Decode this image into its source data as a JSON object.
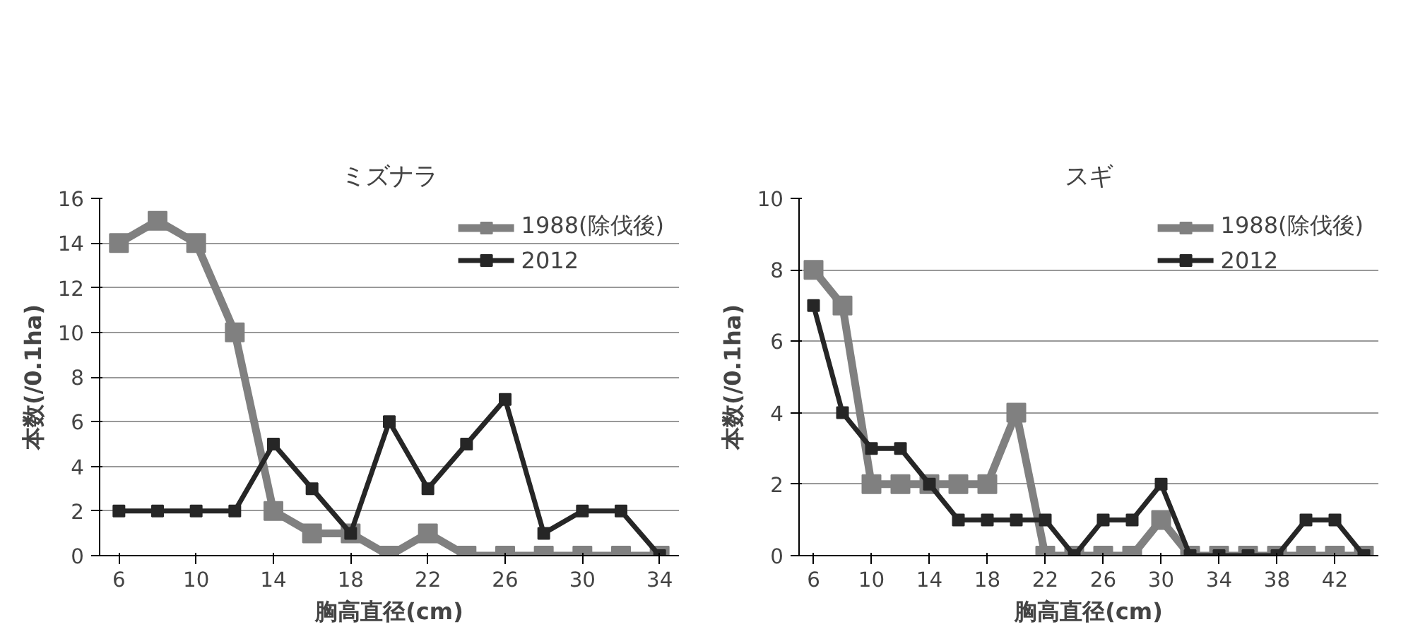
{
  "chart_data": [
    {
      "type": "line",
      "title": "ミズナラ",
      "xlabel": "胸高直径(cm)",
      "ylabel": "本数(/0.1ha)",
      "x": [
        6,
        8,
        10,
        12,
        14,
        16,
        18,
        20,
        22,
        24,
        26,
        28,
        30,
        32,
        34
      ],
      "xlim": [
        5,
        35
      ],
      "xticks": [
        6,
        10,
        14,
        18,
        22,
        26,
        30,
        34
      ],
      "ylim": [
        0,
        16
      ],
      "yticks": [
        0,
        2,
        4,
        6,
        8,
        10,
        12,
        14,
        16
      ],
      "grid": "y",
      "legend": "top right",
      "marker": "square",
      "line_style": "solid",
      "series": [
        {
          "name": "1988(除伐後)",
          "color": "#808080",
          "values": [
            14,
            15,
            14,
            10,
            2,
            1,
            1,
            0,
            1,
            0,
            0,
            0,
            0,
            0,
            0
          ]
        },
        {
          "name": "2012",
          "color": "#262626",
          "values": [
            2,
            2,
            2,
            2,
            5,
            3,
            1,
            6,
            3,
            5,
            7,
            1,
            2,
            2,
            0
          ]
        }
      ]
    },
    {
      "type": "line",
      "title": "スギ",
      "xlabel": "胸高直径(cm)",
      "ylabel": "本数(/0.1ha)",
      "x": [
        6,
        8,
        10,
        12,
        14,
        16,
        18,
        20,
        22,
        24,
        26,
        28,
        30,
        32,
        34,
        36,
        38,
        40,
        42,
        44
      ],
      "xlim": [
        5,
        45
      ],
      "xticks": [
        6,
        10,
        14,
        18,
        22,
        26,
        30,
        34,
        38,
        42
      ],
      "ylim": [
        0,
        10
      ],
      "yticks": [
        0,
        2,
        4,
        6,
        8,
        10
      ],
      "grid": "y",
      "legend": "top right",
      "marker": "square",
      "line_style": "solid",
      "series": [
        {
          "name": "1988(除伐後)",
          "color": "#808080",
          "values": [
            8,
            7,
            2,
            2,
            2,
            2,
            2,
            4,
            0,
            0,
            0,
            0,
            1,
            0,
            0,
            0,
            0,
            0,
            0,
            0
          ]
        },
        {
          "name": "2012",
          "color": "#262626",
          "values": [
            7,
            4,
            3,
            3,
            2,
            1,
            1,
            1,
            1,
            0,
            1,
            1,
            2,
            0,
            0,
            0,
            0,
            1,
            1,
            0
          ]
        }
      ]
    }
  ]
}
